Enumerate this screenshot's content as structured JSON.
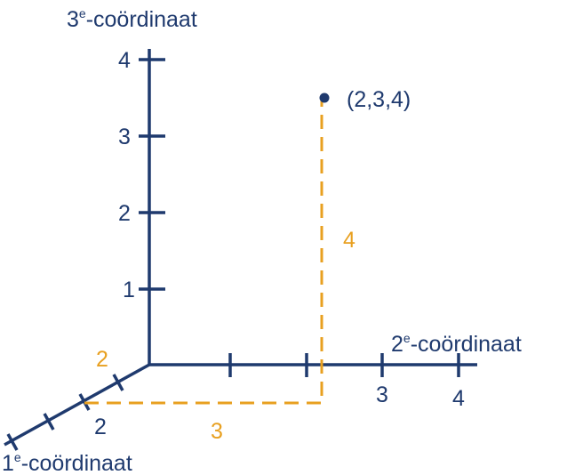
{
  "axes": {
    "third": {
      "number": "3",
      "sup": "e",
      "label": "-coördinaat",
      "ticks": [
        "1",
        "2",
        "3",
        "4"
      ]
    },
    "second": {
      "number": "2",
      "sup": "e",
      "label": "-coördinaat",
      "ticks": [
        "3",
        "4"
      ]
    },
    "first": {
      "number": "1",
      "sup": "e",
      "label": "-coördinaat",
      "ticks": [
        "2"
      ]
    }
  },
  "point": {
    "label": "(2,3,4)"
  },
  "guides": {
    "first": "2",
    "second": "3",
    "third": "4"
  }
}
